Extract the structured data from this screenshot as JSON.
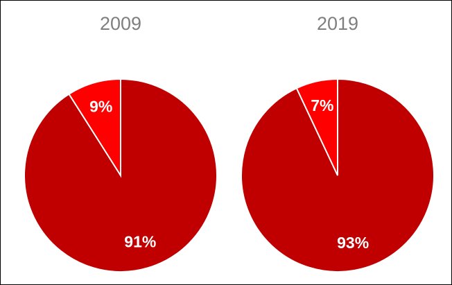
{
  "chart_data": [
    {
      "type": "pie",
      "title": "2009",
      "values": [
        91,
        9
      ],
      "value_labels": [
        "91%",
        "9%"
      ],
      "colors": [
        "#c00000",
        "#ff0000"
      ]
    },
    {
      "type": "pie",
      "title": "2019",
      "values": [
        93,
        7
      ],
      "value_labels": [
        "93%",
        "7%"
      ],
      "colors": [
        "#c00000",
        "#ff0000"
      ]
    }
  ]
}
